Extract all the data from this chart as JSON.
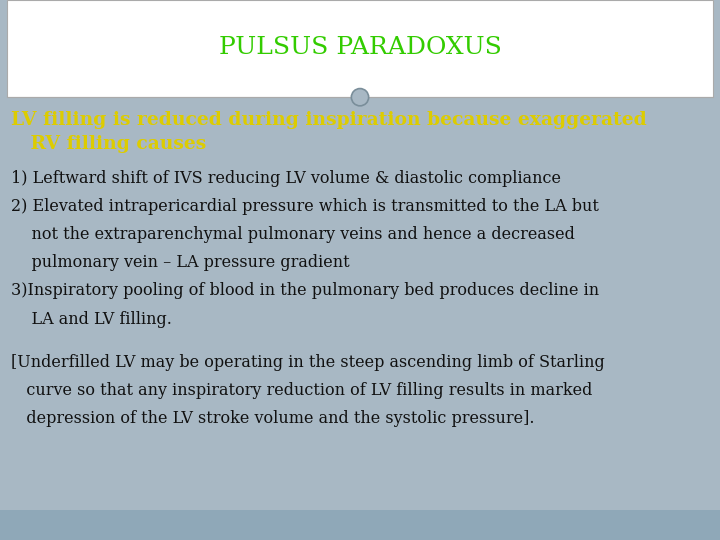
{
  "title": "PULSUS PARADOXUS",
  "title_color": "#33cc00",
  "title_fontsize": 18,
  "header_bg": "#ffffff",
  "body_bg": "#a8b8c4",
  "footer_bg": "#8fa8b8",
  "border_color": "#aaaaaa",
  "circle_edge_color": "#7a8e9a",
  "circle_fill_color": "#a8b8c4",
  "highlight_line1": "LV filling is reduced during inspiration because exaggerated",
  "highlight_line2": "   RV filling causes",
  "highlight_color": "#ddcc00",
  "highlight_fontsize": 13.5,
  "body_text": [
    {
      "text": "1) Leftward shift of IVS reducing LV volume & diastolic compliance",
      "indent": 0
    },
    {
      "text": "2) Elevated intrapericardial pressure which is transmitted to the LA but",
      "indent": 0
    },
    {
      "text": "    not the extraparenchymal pulmonary veins and hence a decreased",
      "indent": 0
    },
    {
      "text": "    pulmonary vein – LA pressure gradient",
      "indent": 0
    },
    {
      "text": "3)Inspiratory pooling of blood in the pulmonary bed produces decline in",
      "indent": 0
    },
    {
      "text": "    LA and LV filling.",
      "indent": 0
    },
    {
      "text": "",
      "indent": 0
    },
    {
      "text": "[Underfilled LV may be operating in the steep ascending limb of Starling",
      "indent": 0
    },
    {
      "text": "   curve so that any inspiratory reduction of LV filling results in marked",
      "indent": 0
    },
    {
      "text": "   depression of the LV stroke volume and the systolic pressure].",
      "indent": 0
    }
  ],
  "body_fontsize": 11.5,
  "body_color": "#111111"
}
